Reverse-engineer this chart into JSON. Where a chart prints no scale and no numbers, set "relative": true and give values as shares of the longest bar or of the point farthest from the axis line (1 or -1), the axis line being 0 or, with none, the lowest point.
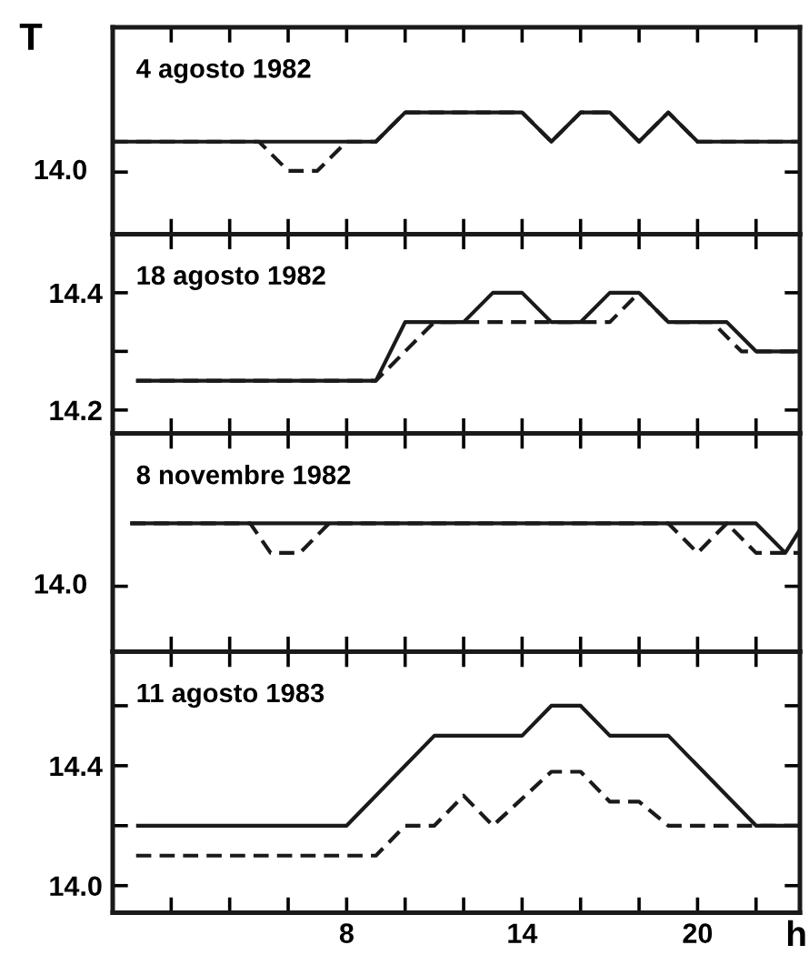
{
  "chart_data": [
    {
      "type": "line",
      "title": "4 agosto 1982",
      "ylabel": "T",
      "relative": true,
      "xlim": [
        0,
        23.5
      ],
      "tick_labels": "y",
      "xticks": [
        {
          "value": 2,
          "label": null
        },
        {
          "value": 4,
          "label": null
        },
        {
          "value": 6,
          "label": null
        },
        {
          "value": 8,
          "label": null
        },
        {
          "value": 10,
          "label": null
        },
        {
          "value": 12,
          "label": null
        },
        {
          "value": 14,
          "label": null
        },
        {
          "value": 16,
          "label": null
        },
        {
          "value": 18,
          "label": null
        },
        {
          "value": 20,
          "label": null
        },
        {
          "value": 22,
          "label": null
        }
      ],
      "annotations": [
        "14.0"
      ],
      "series": [
        {
          "color": "#1a1a1a",
          "line_style": "solid",
          "x": [
            0,
            9,
            10,
            14,
            15,
            16,
            17,
            18,
            19,
            20,
            23.5
          ],
          "values": [
            0.76,
            0.76,
            1,
            1,
            0.76,
            1,
            1,
            0.76,
            1,
            0.76,
            0.76
          ]
        },
        {
          "color": "#1a1a1a",
          "line_style": "dashed",
          "x": [
            0,
            5,
            6,
            7,
            8,
            9,
            10,
            14,
            15,
            16,
            17,
            18,
            19,
            20,
            23.5
          ],
          "values": [
            0.76,
            0.76,
            0.52,
            0.52,
            0.76,
            0.76,
            1,
            1,
            0.76,
            1,
            1,
            0.76,
            1,
            0.76,
            0.76
          ]
        }
      ]
    },
    {
      "type": "line",
      "title": "18 agosto 1982",
      "xlim": [
        0,
        23.5
      ],
      "ylim": [
        14.16,
        14.5
      ],
      "tick_labels": "y",
      "xticks": [
        {
          "value": 2,
          "label": null
        },
        {
          "value": 4,
          "label": null
        },
        {
          "value": 6,
          "label": null
        },
        {
          "value": 8,
          "label": null
        },
        {
          "value": 10,
          "label": null
        },
        {
          "value": 12,
          "label": null
        },
        {
          "value": 14,
          "label": null
        },
        {
          "value": 16,
          "label": null
        },
        {
          "value": 18,
          "label": null
        },
        {
          "value": 20,
          "label": null
        },
        {
          "value": 22,
          "label": null
        }
      ],
      "yticks": [
        {
          "value": 14.2,
          "label": "14.2"
        },
        {
          "value": 14.3,
          "label": null
        },
        {
          "value": 14.4,
          "label": "14.4"
        }
      ],
      "series": [
        {
          "color": "#1a1a1a",
          "line_style": "solid",
          "x": [
            0.8,
            9,
            10,
            12,
            13,
            14,
            15,
            16,
            17,
            18,
            19,
            21,
            22,
            23.5
          ],
          "values": [
            14.25,
            14.25,
            14.35,
            14.35,
            14.4,
            14.4,
            14.35,
            14.35,
            14.4,
            14.4,
            14.35,
            14.35,
            14.3,
            14.3
          ]
        },
        {
          "color": "#1a1a1a",
          "line_style": "dashed",
          "x": [
            0.8,
            9,
            11,
            17,
            18,
            19,
            20.5,
            21.5,
            23.5
          ],
          "values": [
            14.25,
            14.25,
            14.35,
            14.35,
            14.4,
            14.35,
            14.35,
            14.3,
            14.3
          ]
        }
      ]
    },
    {
      "type": "line",
      "title": "8 novembre 1982",
      "relative": true,
      "xlim": [
        0,
        23.5
      ],
      "tick_labels": "y",
      "xticks": [
        {
          "value": 2,
          "label": null
        },
        {
          "value": 4,
          "label": null
        },
        {
          "value": 6,
          "label": null
        },
        {
          "value": 8,
          "label": null
        },
        {
          "value": 10,
          "label": null
        },
        {
          "value": 12,
          "label": null
        },
        {
          "value": 14,
          "label": null
        },
        {
          "value": 16,
          "label": null
        },
        {
          "value": 18,
          "label": null
        },
        {
          "value": 20,
          "label": null
        },
        {
          "value": 22,
          "label": null
        }
      ],
      "annotations": [
        "14.0"
      ],
      "series": [
        {
          "color": "#1a1a1a",
          "line_style": "solid",
          "x": [
            0.6,
            22,
            23,
            23.5
          ],
          "values": [
            1,
            1,
            0.77,
            0.95
          ]
        },
        {
          "color": "#1a1a1a",
          "line_style": "dashed",
          "x": [
            0.6,
            4.7,
            5.4,
            6.4,
            7.4,
            19,
            20,
            21,
            22,
            23.5
          ],
          "values": [
            1,
            1,
            0.77,
            0.77,
            1,
            1,
            0.77,
            1,
            0.77,
            0.77
          ]
        }
      ]
    },
    {
      "type": "line",
      "title": "11 agosto 1983",
      "xlabel": "h",
      "xlim": [
        0,
        23.5
      ],
      "ylim": [
        13.91,
        14.78
      ],
      "xticks": [
        {
          "value": 2,
          "label": null
        },
        {
          "value": 4,
          "label": null
        },
        {
          "value": 6,
          "label": null
        },
        8,
        {
          "value": 10,
          "label": null
        },
        {
          "value": 12,
          "label": null
        },
        14,
        {
          "value": 16,
          "label": null
        },
        {
          "value": 18,
          "label": null
        },
        20,
        {
          "value": 22,
          "label": null
        }
      ],
      "yticks": [
        {
          "value": 14.0,
          "label": "14.0"
        },
        {
          "value": 14.2,
          "label": null
        },
        {
          "value": 14.4,
          "label": "14.4"
        },
        {
          "value": 14.6,
          "label": null
        }
      ],
      "series": [
        {
          "color": "#1a1a1a",
          "line_style": "solid",
          "x": [
            0.8,
            8,
            11,
            14,
            15,
            16,
            17,
            19,
            22,
            23.5
          ],
          "values": [
            14.2,
            14.2,
            14.5,
            14.5,
            14.6,
            14.6,
            14.5,
            14.5,
            14.2,
            14.2
          ]
        },
        {
          "color": "#1a1a1a",
          "line_style": "dashed",
          "x": [
            0.8,
            9,
            10,
            11,
            12,
            13,
            15,
            16,
            17,
            18,
            19,
            23.5
          ],
          "values": [
            14.1,
            14.1,
            14.2,
            14.2,
            14.3,
            14.2,
            14.38,
            14.38,
            14.28,
            14.28,
            14.2,
            14.2
          ]
        }
      ]
    }
  ]
}
